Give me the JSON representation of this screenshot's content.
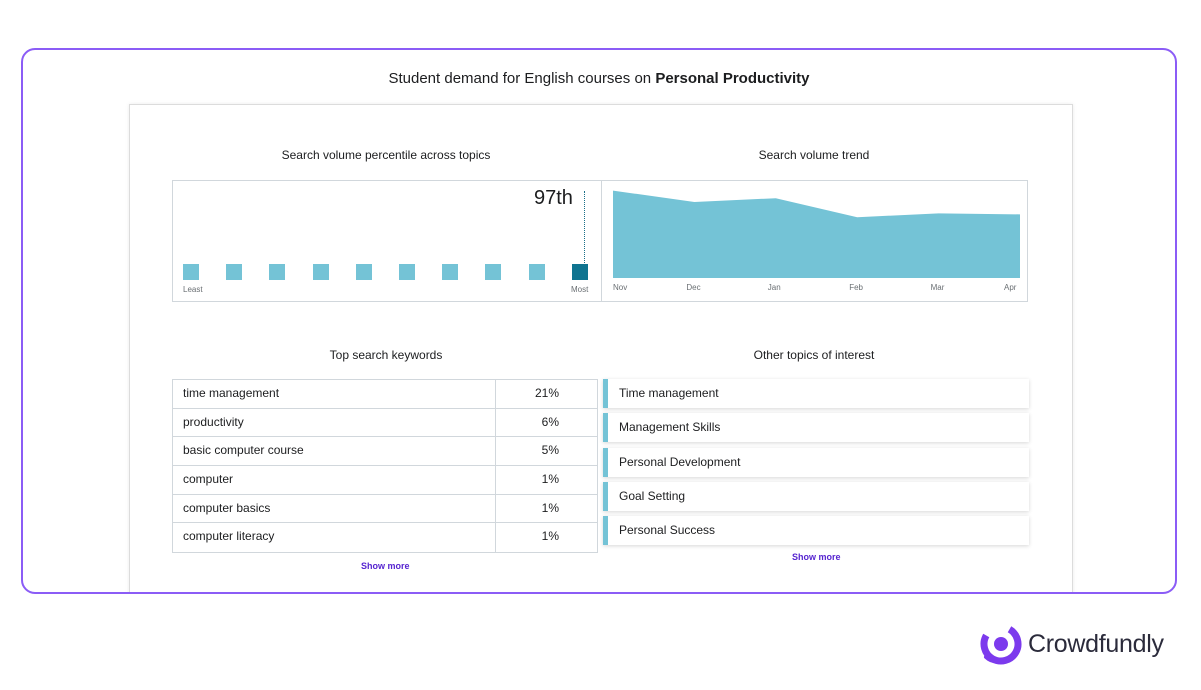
{
  "main_title_prefix": "Student demand for English courses on",
  "main_title_topic": "Personal Productivity",
  "percentile": {
    "title": "Search volume percentile across topics",
    "value_label": "97th",
    "value": 97,
    "axis_min_label": "Least",
    "axis_max_label": "Most",
    "bucket_count": 10,
    "active_bucket": 10,
    "colors": {
      "bucket": "#74c3d6",
      "active": "#0f7490"
    }
  },
  "trend": {
    "title": "Search volume trend",
    "months": [
      "Nov",
      "Dec",
      "Jan",
      "Feb",
      "Mar",
      "Apr"
    ],
    "fill_color": "#74c3d6"
  },
  "chart_data": {
    "type": "area",
    "title": "Search volume trend",
    "categories": [
      "Nov",
      "Dec",
      "Jan",
      "Feb",
      "Mar",
      "Apr"
    ],
    "values": [
      92,
      80,
      84,
      64,
      68,
      67
    ],
    "ylim": [
      0,
      100
    ],
    "grid": false
  },
  "keywords": {
    "title": "Top search keywords",
    "rows": [
      {
        "name": "time management",
        "pct": "21%"
      },
      {
        "name": "productivity",
        "pct": "6%"
      },
      {
        "name": "basic computer course",
        "pct": "5%"
      },
      {
        "name": "computer",
        "pct": "1%"
      },
      {
        "name": "computer basics",
        "pct": "1%"
      },
      {
        "name": "computer literacy",
        "pct": "1%"
      }
    ],
    "show_more": "Show more"
  },
  "topics": {
    "title": "Other topics of interest",
    "items": [
      "Time management",
      "Management Skills",
      "Personal Development",
      "Goal Setting",
      "Personal Success"
    ],
    "show_more": "Show more"
  },
  "brand": {
    "name": "Crowdfundly",
    "logo_icon": "crowdfundly-logo-icon",
    "color": "#7c3aed"
  },
  "accent_color": "#8b5cf6",
  "link_color": "#5624d0"
}
